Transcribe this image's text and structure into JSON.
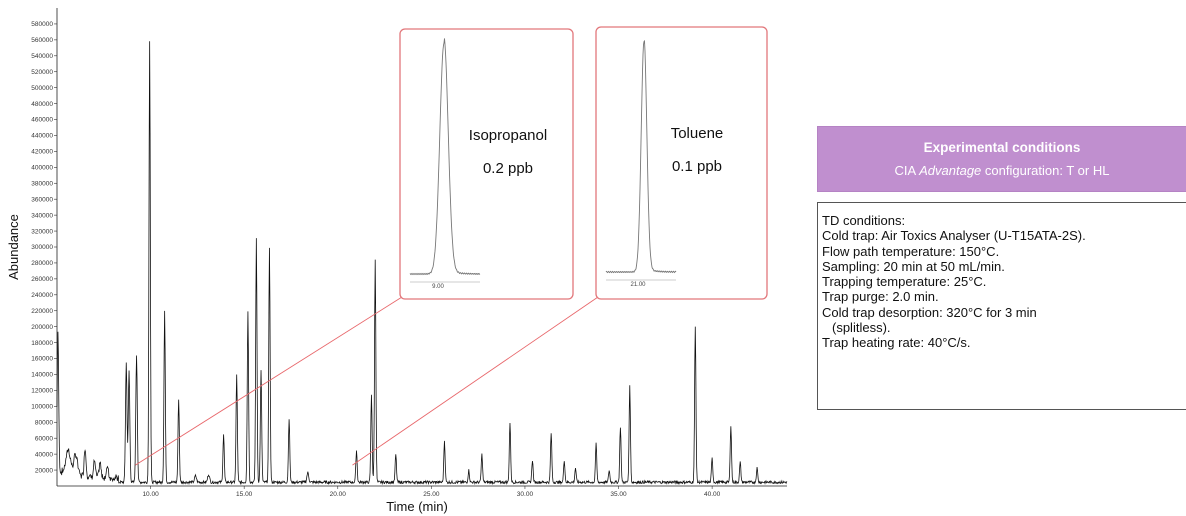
{
  "chart_data": {
    "type": "line",
    "xlabel": "Time (min)",
    "ylabel": "Abundance",
    "xlim": [
      5.0,
      44.0
    ],
    "ylim": [
      0,
      600000
    ],
    "x_ticks": [
      10,
      15,
      20,
      25,
      30,
      35,
      40
    ],
    "x_tick_labels": [
      "10.00",
      "15.00",
      "20.00",
      "25.00",
      "30.00",
      "35.00",
      "40.00"
    ],
    "y_ticks": [
      20000,
      40000,
      60000,
      80000,
      100000,
      120000,
      140000,
      160000,
      180000,
      200000,
      220000,
      240000,
      260000,
      280000,
      300000,
      320000,
      340000,
      360000,
      380000,
      400000,
      420000,
      440000,
      460000,
      480000,
      500000,
      520000,
      540000,
      560000,
      580000
    ],
    "y_tick_labels": [
      "20000",
      "40000",
      "60000",
      "80000",
      "100000",
      "120000",
      "140000",
      "160000",
      "180000",
      "200000",
      "220000",
      "240000",
      "260000",
      "280000",
      "300000",
      "320000",
      "340000",
      "360000",
      "380000",
      "400000",
      "420000",
      "440000",
      "460000",
      "480000",
      "500000",
      "520000",
      "540000",
      "560000",
      "580000"
    ],
    "peaks": [
      {
        "t": 5.05,
        "h": 175000,
        "w": 0.04
      },
      {
        "t": 5.6,
        "h": 30000,
        "w": 0.12
      },
      {
        "t": 6.0,
        "h": 25000,
        "w": 0.1
      },
      {
        "t": 6.5,
        "h": 35000,
        "w": 0.05
      },
      {
        "t": 7.0,
        "h": 20000,
        "w": 0.05
      },
      {
        "t": 7.3,
        "h": 18000,
        "w": 0.05
      },
      {
        "t": 7.7,
        "h": 15000,
        "w": 0.05
      },
      {
        "t": 8.7,
        "h": 150000,
        "w": 0.04
      },
      {
        "t": 8.85,
        "h": 140000,
        "w": 0.04
      },
      {
        "t": 9.25,
        "h": 160000,
        "w": 0.04
      },
      {
        "t": 9.95,
        "h": 555000,
        "w": 0.035
      },
      {
        "t": 10.75,
        "h": 215000,
        "w": 0.035
      },
      {
        "t": 11.5,
        "h": 105000,
        "w": 0.035
      },
      {
        "t": 12.4,
        "h": 8000,
        "w": 0.05
      },
      {
        "t": 13.1,
        "h": 10000,
        "w": 0.05
      },
      {
        "t": 13.9,
        "h": 60000,
        "w": 0.035
      },
      {
        "t": 14.6,
        "h": 135000,
        "w": 0.035
      },
      {
        "t": 15.2,
        "h": 215000,
        "w": 0.035
      },
      {
        "t": 15.65,
        "h": 305000,
        "w": 0.035
      },
      {
        "t": 15.9,
        "h": 140000,
        "w": 0.035
      },
      {
        "t": 16.35,
        "h": 295000,
        "w": 0.035
      },
      {
        "t": 17.4,
        "h": 80000,
        "w": 0.035
      },
      {
        "t": 18.4,
        "h": 12000,
        "w": 0.05
      },
      {
        "t": 21.0,
        "h": 40000,
        "w": 0.035
      },
      {
        "t": 21.8,
        "h": 110000,
        "w": 0.035
      },
      {
        "t": 22.0,
        "h": 280000,
        "w": 0.035
      },
      {
        "t": 23.1,
        "h": 35000,
        "w": 0.035
      },
      {
        "t": 25.7,
        "h": 52000,
        "w": 0.035
      },
      {
        "t": 27.0,
        "h": 15000,
        "w": 0.035
      },
      {
        "t": 27.7,
        "h": 35000,
        "w": 0.035
      },
      {
        "t": 29.2,
        "h": 75000,
        "w": 0.035
      },
      {
        "t": 30.4,
        "h": 28000,
        "w": 0.035
      },
      {
        "t": 31.4,
        "h": 62000,
        "w": 0.035
      },
      {
        "t": 32.1,
        "h": 28000,
        "w": 0.035
      },
      {
        "t": 32.7,
        "h": 18000,
        "w": 0.035
      },
      {
        "t": 33.8,
        "h": 48000,
        "w": 0.035
      },
      {
        "t": 34.5,
        "h": 15000,
        "w": 0.035
      },
      {
        "t": 35.1,
        "h": 70000,
        "w": 0.035
      },
      {
        "t": 35.6,
        "h": 120000,
        "w": 0.035
      },
      {
        "t": 39.1,
        "h": 195000,
        "w": 0.035
      },
      {
        "t": 40.0,
        "h": 30000,
        "w": 0.035
      },
      {
        "t": 41.0,
        "h": 72000,
        "w": 0.035
      },
      {
        "t": 41.5,
        "h": 25000,
        "w": 0.035
      },
      {
        "t": 42.4,
        "h": 18000,
        "w": 0.035
      }
    ],
    "insets": [
      {
        "compound": "Isopropanol",
        "concentration": "0.2 ppb",
        "tick_label": "9.00",
        "source_time": 9.4
      },
      {
        "compound": "Toluene",
        "concentration": "0.1 ppb",
        "tick_label": "21.00",
        "source_time": 21.0
      }
    ],
    "colors": {
      "trace": "#111111",
      "inset_border": "#e2777b",
      "callout_line": "#e8676b",
      "inset_trace": "#777777"
    }
  },
  "conditions": {
    "title": "Experimental conditions",
    "subtitle_prefix": "CIA ",
    "subtitle_italic": "Advantage",
    "subtitle_suffix": " configuration: T or HL",
    "lines": [
      "TD conditions:",
      "Cold trap: Air Toxics Analyser (U-T15ATA-2S).",
      "Flow path temperature: 150°C.",
      "Sampling: 20 min at 50 mL/min.",
      "Trapping temperature: 25°C.",
      "Trap purge: 2.0 min.",
      "Cold trap desorption: 320°C for 3 min",
      "(splitless).",
      "Trap heating rate: 40°C/s."
    ],
    "indented_line": 7,
    "header_color": "#c08fcf"
  }
}
